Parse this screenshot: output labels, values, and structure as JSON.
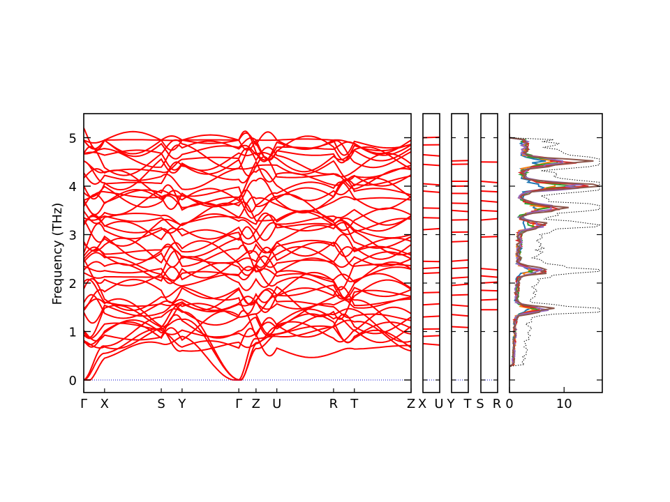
{
  "chart_data": [
    {
      "type": "line",
      "panel": "band-structure",
      "ylabel": "Frequency (THz)",
      "ylim": [
        -0.25,
        5.5
      ],
      "yticks": [
        0,
        1,
        2,
        3,
        4,
        5
      ],
      "kpath_segments": [
        {
          "from": "Γ",
          "to": "X",
          "length": 0.29
        },
        {
          "from": "X",
          "to": "S",
          "length": 0.79
        },
        {
          "from": "S",
          "to": "Y",
          "length": 0.29
        },
        {
          "from": "Y",
          "to": "Γ",
          "length": 0.79
        },
        {
          "from": "Γ",
          "to": "Z",
          "length": 0.24
        },
        {
          "from": "Z",
          "to": "U",
          "length": 0.29
        },
        {
          "from": "U",
          "to": "R",
          "length": 0.79
        },
        {
          "from": "R",
          "to": "T",
          "length": 0.29
        },
        {
          "from": "T",
          "to": "Z",
          "length": 0.79
        }
      ],
      "xtick_labels": [
        "Γ",
        "X",
        "S",
        "Y",
        "Γ",
        "Z",
        "U",
        "R",
        "T",
        "Z"
      ],
      "series_color": "#ff0000",
      "zero_line_color": "#0000cc",
      "max_frequency_at_gamma": 5.2
    },
    {
      "type": "line",
      "panel": "band-structure-X-U",
      "xtick_labels": [
        "X",
        "U"
      ],
      "levels": [
        0.75,
        0.9,
        1.05,
        1.3,
        1.55,
        1.8,
        2.2,
        2.3,
        2.45,
        3.1,
        3.35,
        3.55,
        3.9,
        4.05,
        4.45,
        4.65,
        4.85,
        5.0
      ]
    },
    {
      "type": "line",
      "panel": "band-structure-Y-T",
      "xtick_labels": [
        "Y",
        "T"
      ],
      "levels": [
        1.1,
        1.35,
        1.55,
        1.75,
        1.95,
        2.1,
        2.3,
        2.45,
        2.85,
        3.05,
        3.3,
        3.5,
        3.65,
        3.85,
        4.0,
        4.1,
        4.45,
        4.52
      ]
    },
    {
      "type": "line",
      "panel": "band-structure-S-R",
      "xtick_labels": [
        "S",
        "R"
      ],
      "levels": [
        1.45,
        1.65,
        1.85,
        2.0,
        2.15,
        2.3,
        2.95,
        3.3,
        3.5,
        3.7,
        3.9,
        4.1,
        4.5
      ]
    },
    {
      "type": "line",
      "panel": "density-of-states",
      "xlim": [
        0,
        17
      ],
      "xticks": [
        0,
        10
      ],
      "series": [
        {
          "color": "#1f77b4",
          "style": "solid"
        },
        {
          "color": "#ff7f0e",
          "style": "solid"
        },
        {
          "color": "#2ca02c",
          "style": "solid"
        },
        {
          "color": "#d62728",
          "style": "solid"
        },
        {
          "color": "#9467bd",
          "style": "solid"
        },
        {
          "color": "#8c564b",
          "style": "solid"
        },
        {
          "color": "#000000",
          "style": "dotted",
          "role": "total"
        }
      ]
    }
  ]
}
